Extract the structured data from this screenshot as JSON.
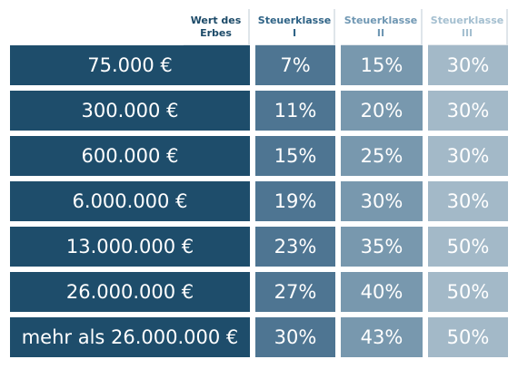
{
  "headers": [
    {
      "line1": "Wert des",
      "line2": "Erbes"
    },
    {
      "line1": "Steuerklasse",
      "line2": "I"
    },
    {
      "line1": "Steuerklasse",
      "line2": "II"
    },
    {
      "line1": "Steuerklasse",
      "line2": "III"
    }
  ],
  "rows": [
    {
      "value": "75.000  €",
      "k1": "7%",
      "k2": "15%",
      "k3": "30%"
    },
    {
      "value": "300.000 €",
      "k1": "11%",
      "k2": "20%",
      "k3": "30%"
    },
    {
      "value": "600.000 €",
      "k1": "15%",
      "k2": "25%",
      "k3": "30%"
    },
    {
      "value": "6.000.000 €",
      "k1": "19%",
      "k2": "30%",
      "k3": "30%"
    },
    {
      "value": "13.000.000 €",
      "k1": "23%",
      "k2": "35%",
      "k3": "50%"
    },
    {
      "value": "26.000.000 €",
      "k1": "27%",
      "k2": "40%",
      "k3": "50%"
    },
    {
      "value": "mehr als 26.000.000 €",
      "k1": "30%",
      "k2": "43%",
      "k3": "50%"
    }
  ]
}
